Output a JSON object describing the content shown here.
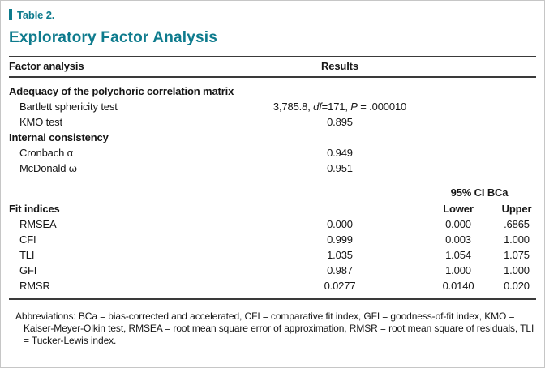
{
  "accent_color": "#0e7b8d",
  "page": {
    "label": "Table 2.",
    "title": "Exploratory Factor Analysis"
  },
  "table": {
    "col_factor": "Factor analysis",
    "col_results": "Results",
    "ci_span_header": "95% CI BCa",
    "col_lower": "Lower",
    "col_upper": "Upper",
    "adequacy": {
      "header": "Adequacy of the polychoric correlation matrix",
      "bartlett": {
        "label": "Bartlett sphericity test",
        "value_part1": "3,785.8, ",
        "value_df": "df",
        "value_part2": "=171, ",
        "value_p": "P",
        "value_part3": " = .000010"
      },
      "kmo": {
        "label": "KMO test",
        "value": "0.895"
      }
    },
    "consistency": {
      "header": "Internal consistency",
      "cronbach": {
        "label": "Cronbach α",
        "value": "0.949"
      },
      "mcdonald": {
        "label": "McDonald ω",
        "value": "0.951"
      }
    },
    "fit": {
      "header": "Fit indices",
      "rows": [
        {
          "label": "RMSEA",
          "result": "0.000",
          "lower": "0.000",
          "upper": ".6865"
        },
        {
          "label": "CFI",
          "result": "0.999",
          "lower": "0.003",
          "upper": "1.000"
        },
        {
          "label": "TLI",
          "result": "1.035",
          "lower": "1.054",
          "upper": "1.075"
        },
        {
          "label": "GFI",
          "result": "0.987",
          "lower": "1.000",
          "upper": "1.000"
        },
        {
          "label": "RMSR",
          "result": "0.0277",
          "lower": "0.0140",
          "upper": "0.020"
        }
      ]
    }
  },
  "footnote": "Abbreviations: BCa = bias-corrected and accelerated, CFI = comparative fit index, GFI = goodness-of-fit index, KMO = Kaiser-Meyer-Olkin test, RMSEA = root mean square error of approximation, RMSR = root mean square of residuals, TLI = Tucker-Lewis index."
}
